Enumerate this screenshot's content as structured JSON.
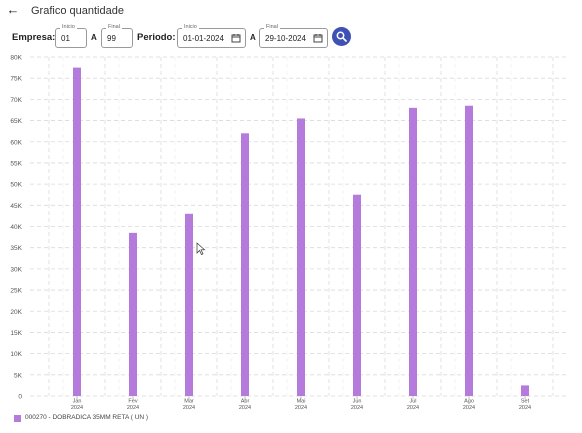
{
  "header": {
    "title": "Grafico quantidade",
    "back_icon": "arrow-left-icon"
  },
  "filters": {
    "empresa_label": "Empresa:",
    "empresa_inicio_legend": "Inicio",
    "empresa_inicio_value": "01",
    "empresa_sep": "A",
    "empresa_final_legend": "Final",
    "empresa_final_value": "99",
    "periodo_label": "Periodo:",
    "periodo_inicio_legend": "Inicio",
    "periodo_inicio_value": "01-01-2024",
    "periodo_sep": "A",
    "periodo_final_legend": "Final",
    "periodo_final_value": "29-10-2024",
    "search_icon": "search-icon",
    "accent": "#3f51b5"
  },
  "chart_data": {
    "type": "bar",
    "categories": [
      "Jan",
      "Fev",
      "Mar",
      "Abr",
      "Mai",
      "Jun",
      "Jul",
      "Ago",
      "Set"
    ],
    "category_years": [
      "2024",
      "2024",
      "2024",
      "2024",
      "2024",
      "2024",
      "2024",
      "2024",
      "2024"
    ],
    "series": [
      {
        "name": "000270 - DOBRADICA 35MM RETA ( UN )",
        "values": [
          77500,
          38500,
          43000,
          62000,
          65500,
          47500,
          68000,
          68500,
          2500
        ],
        "color": "#b57bdc"
      }
    ],
    "y_ticks": [
      "0",
      "5K",
      "10K",
      "15K",
      "20K",
      "25K",
      "30K",
      "35K",
      "40K",
      "45K",
      "50K",
      "55K",
      "60K",
      "65K",
      "70K",
      "75K",
      "80K"
    ],
    "ylim": [
      0,
      80000
    ],
    "grid": true,
    "legend_position": "bottom-left"
  }
}
